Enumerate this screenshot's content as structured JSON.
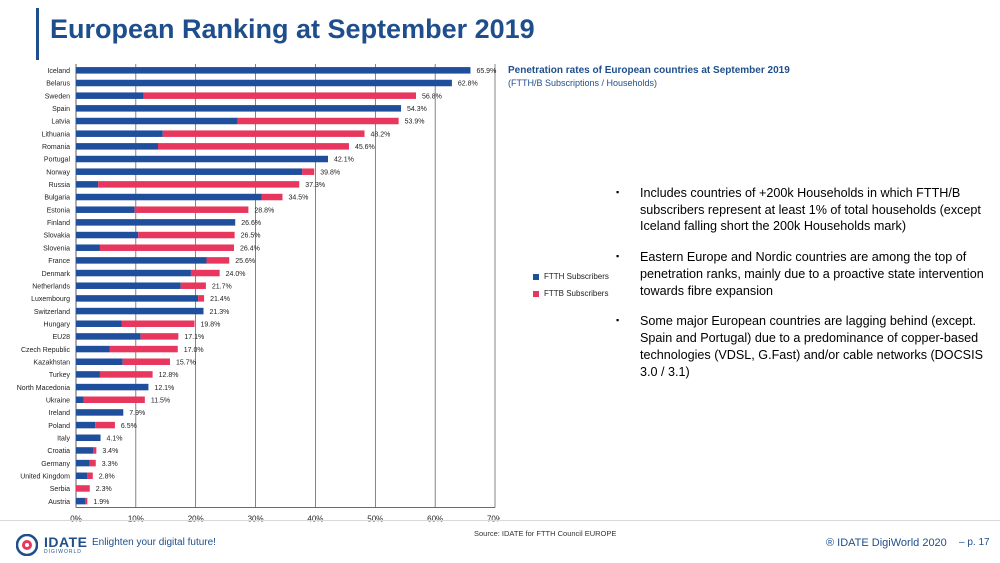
{
  "header": {
    "title": "European Ranking at September 2019"
  },
  "chart_data": {
    "type": "bar",
    "orientation": "horizontal",
    "stacked": true,
    "title": "Penetration rates of European countries at September 2019",
    "subtitle": "(FTTH/B Subscriptions / Households)",
    "xlim": [
      0,
      70
    ],
    "x_ticks": [
      "0%",
      "10%",
      "20%",
      "30%",
      "40%",
      "50%",
      "60%",
      "70%"
    ],
    "grid": "vertical",
    "legend_position": "right",
    "categories": [
      "Iceland",
      "Belarus",
      "Sweden",
      "Spain",
      "Latvia",
      "Lithuania",
      "Romania",
      "Portugal",
      "Norway",
      "Russia",
      "Bulgaria",
      "Estonia",
      "Finland",
      "Slovakia",
      "Slovenia",
      "France",
      "Denmark",
      "Netherlands",
      "Luxembourg",
      "Switzerland",
      "Hungary",
      "EU28",
      "Czech Republic",
      "Kazakhstan",
      "Turkey",
      "North Macedonia",
      "Ukraine",
      "Ireland",
      "Poland",
      "Italy",
      "Croatia",
      "Germany",
      "United Kingdom",
      "Serbia",
      "Austria"
    ],
    "totals": [
      65.9,
      62.8,
      56.8,
      54.3,
      53.9,
      48.2,
      45.6,
      42.1,
      39.8,
      37.3,
      34.5,
      28.8,
      26.6,
      26.5,
      26.4,
      25.6,
      24.0,
      21.7,
      21.4,
      21.3,
      19.8,
      17.1,
      17.0,
      15.7,
      12.8,
      12.1,
      11.5,
      7.9,
      6.5,
      4.1,
      3.4,
      3.3,
      2.8,
      2.3,
      1.9
    ],
    "total_labels": [
      "65.9%",
      "62.8%",
      "56.8%",
      "54.3%",
      "53.9%",
      "48.2%",
      "45.6%",
      "42.1%",
      "39.8%",
      "37.3%",
      "34.5%",
      "28.8%",
      "26.6%",
      "26.5%",
      "26.4%",
      "25.6%",
      "24.0%",
      "21.7%",
      "21.4%",
      "21.3%",
      "19.8%",
      "17.1%",
      "17.0%",
      "15.7%",
      "12.8%",
      "12.1%",
      "11.5%",
      "7.9%",
      "6.5%",
      "4.1%",
      "3.4%",
      "3.3%",
      "2.8%",
      "2.3%",
      "1.9%"
    ],
    "series": [
      {
        "name": "FTTH Subscribers",
        "color": "#1f4e9c",
        "values": [
          65.9,
          62.8,
          11.3,
          54.3,
          27.0,
          14.5,
          13.7,
          42.1,
          37.8,
          3.7,
          31.0,
          9.8,
          26.6,
          10.4,
          4.0,
          21.8,
          19.2,
          17.5,
          20.4,
          21.3,
          7.6,
          10.8,
          5.6,
          7.8,
          4.0,
          12.1,
          1.3,
          7.9,
          3.2,
          4.1,
          2.9,
          2.3,
          1.9,
          0.0,
          1.5
        ]
      },
      {
        "name": "FTTB Subscribers",
        "color": "#e8375e",
        "values": [
          0.0,
          0.0,
          45.5,
          0.0,
          26.9,
          33.7,
          31.9,
          0.0,
          2.0,
          33.6,
          3.5,
          19.0,
          0.0,
          16.1,
          22.4,
          3.8,
          4.8,
          4.2,
          1.0,
          0.0,
          12.2,
          6.3,
          11.4,
          7.9,
          8.8,
          0.0,
          10.2,
          0.0,
          3.3,
          0.0,
          0.5,
          1.0,
          0.9,
          2.3,
          0.4
        ]
      }
    ],
    "source": "Source: IDATE for FTTH Council EUROPE"
  },
  "bullets": [
    "Includes countries of +200k Households in which FTTH/B subscribers represent at least 1% of total households (except Iceland falling short the 200k Households mark)",
    "Eastern Europe and Nordic countries are among the top of penetration ranks, mainly due to a proactive state intervention towards fibre expansion",
    "Some major European countries are lagging behind (except. Spain and Portugal) due to a predominance of copper-based technologies (VDSL, G.Fast) and/or cable networks (DOCSIS 3.0 / 3.1)"
  ],
  "bullet_marker": "▪",
  "footer": {
    "brand": "IDATE",
    "brand_sub": "DIGIWORLD",
    "tagline": "Enlighten your digital future!",
    "copyright": "® IDATE DigiWorld 2020",
    "page": "– p. 17"
  }
}
